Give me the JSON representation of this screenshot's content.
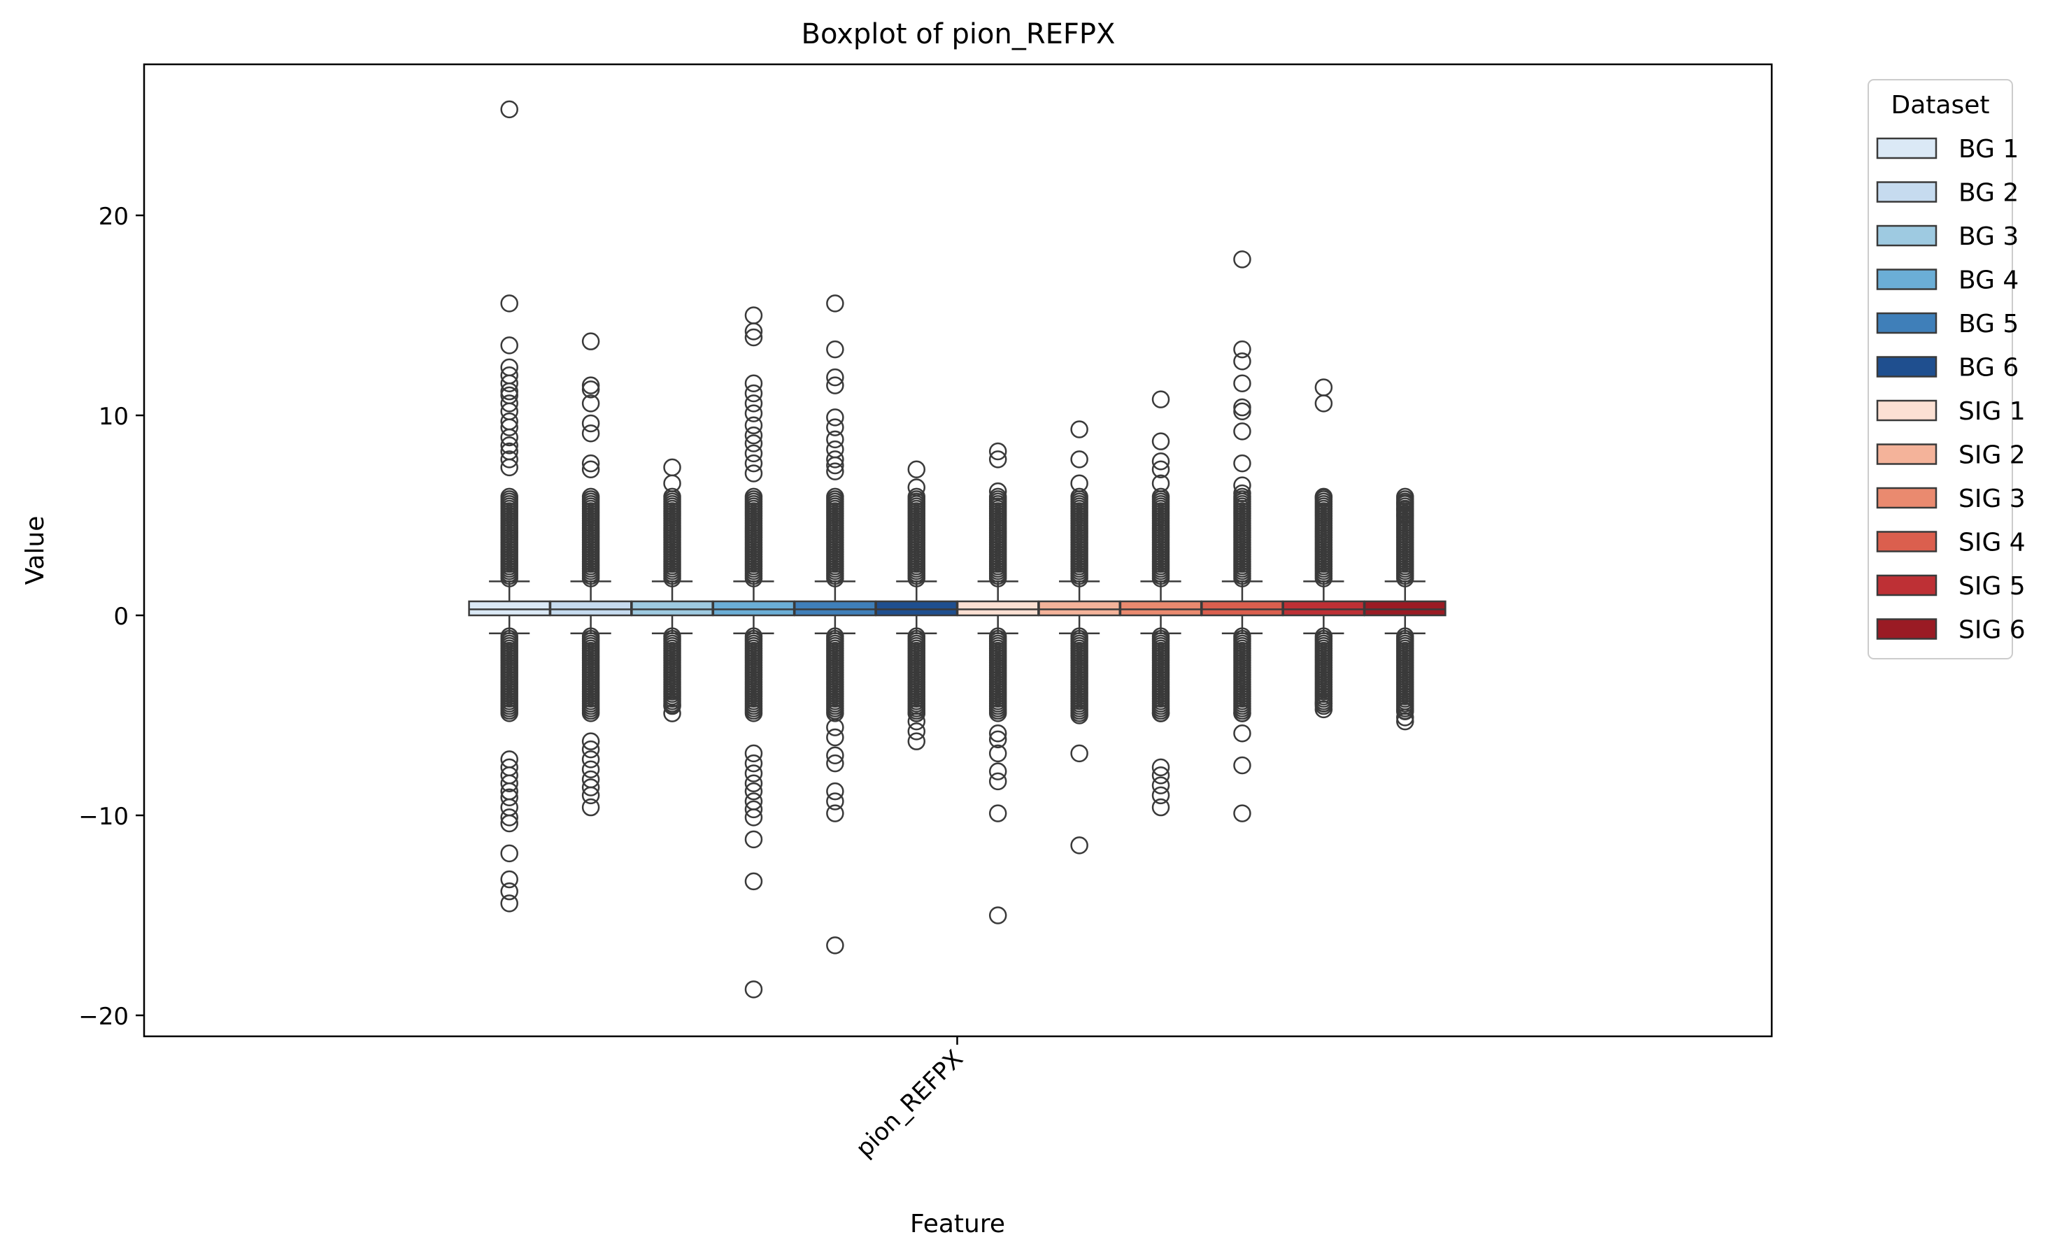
{
  "chart_data": {
    "type": "box",
    "title": "Boxplot of pion_REFPX",
    "xlabel": "Feature",
    "ylabel": "Value",
    "categories": [
      "pion_REFPX"
    ],
    "ylim": [
      -21,
      27.5
    ],
    "yticks": [
      -20,
      -10,
      0,
      10,
      20
    ],
    "grid": false,
    "legend": {
      "title": "Dataset",
      "placement": "outside-top-right"
    },
    "series": [
      {
        "name": "BG 1",
        "color": "#dbe9f6",
        "q1": 0.0,
        "median": 0.3,
        "q3": 0.7,
        "whisker_low": -0.9,
        "whisker_high": 1.7,
        "outliers_high": [
          25.3,
          15.6,
          13.5,
          12.4,
          12.0,
          11.6,
          11.2,
          11.0,
          10.6,
          10.2,
          9.7,
          9.4,
          8.9,
          8.5,
          8.2,
          7.8,
          7.4
        ],
        "outliers_low": [
          -7.2,
          -7.6,
          -8.0,
          -8.4,
          -8.8,
          -9.1,
          -9.6,
          -10.1,
          -10.4,
          -11.9,
          -13.2,
          -13.8,
          -14.4
        ]
      },
      {
        "name": "BG 2",
        "color": "#c6dbef",
        "q1": 0.0,
        "median": 0.3,
        "q3": 0.7,
        "whisker_low": -0.9,
        "whisker_high": 1.7,
        "outliers_high": [
          13.7,
          11.5,
          11.3,
          10.6,
          9.6,
          9.1,
          7.6,
          7.3
        ],
        "outliers_low": [
          -6.3,
          -6.7,
          -7.2,
          -7.7,
          -8.2,
          -8.6,
          -9.0,
          -9.6
        ]
      },
      {
        "name": "BG 3",
        "color": "#9ecae1",
        "q1": 0.0,
        "median": 0.3,
        "q3": 0.7,
        "whisker_low": -0.9,
        "whisker_high": 1.7,
        "outliers_high": [
          7.4,
          6.6
        ],
        "outliers_low": [
          -4.5,
          -4.9
        ]
      },
      {
        "name": "BG 4",
        "color": "#6baed6",
        "q1": 0.0,
        "median": 0.3,
        "q3": 0.7,
        "whisker_low": -0.9,
        "whisker_high": 1.7,
        "outliers_high": [
          15.0,
          14.2,
          13.9,
          11.6,
          11.1,
          10.6,
          10.1,
          9.5,
          9.0,
          8.6,
          8.1,
          7.6,
          7.1
        ],
        "outliers_low": [
          -6.9,
          -7.4,
          -7.9,
          -8.4,
          -8.8,
          -9.3,
          -9.7,
          -10.1,
          -11.2,
          -13.3,
          -18.7
        ]
      },
      {
        "name": "BG 5",
        "color": "#3f7fb9",
        "q1": 0.0,
        "median": 0.3,
        "q3": 0.7,
        "whisker_low": -0.9,
        "whisker_high": 1.7,
        "outliers_high": [
          15.6,
          13.3,
          11.9,
          11.5,
          9.9,
          9.4,
          8.8,
          8.3,
          7.8,
          7.5,
          7.2
        ],
        "outliers_low": [
          -5.6,
          -6.1,
          -7.0,
          -7.4,
          -8.8,
          -9.3,
          -9.9,
          -16.5
        ]
      },
      {
        "name": "BG 6",
        "color": "#1f4f8f",
        "q1": 0.0,
        "median": 0.3,
        "q3": 0.7,
        "whisker_low": -0.9,
        "whisker_high": 1.7,
        "outliers_high": [
          7.3,
          6.4
        ],
        "outliers_low": [
          -4.9,
          -5.3,
          -5.8,
          -6.3
        ]
      },
      {
        "name": "SIG 1",
        "color": "#fbe0d3",
        "q1": 0.0,
        "median": 0.3,
        "q3": 0.7,
        "whisker_low": -0.9,
        "whisker_high": 1.7,
        "outliers_high": [
          8.2,
          7.8,
          6.2
        ],
        "outliers_low": [
          -5.9,
          -6.2,
          -6.9,
          -7.8,
          -8.3,
          -9.9,
          -15.0
        ]
      },
      {
        "name": "SIG 2",
        "color": "#f4b39a",
        "q1": 0.0,
        "median": 0.3,
        "q3": 0.7,
        "whisker_low": -0.9,
        "whisker_high": 1.7,
        "outliers_high": [
          9.3,
          7.8,
          6.6
        ],
        "outliers_low": [
          -5.0,
          -6.9,
          -11.5
        ]
      },
      {
        "name": "SIG 3",
        "color": "#ea8a6f",
        "q1": 0.0,
        "median": 0.3,
        "q3": 0.7,
        "whisker_low": -0.9,
        "whisker_high": 1.7,
        "outliers_high": [
          10.8,
          8.7,
          7.7,
          7.3,
          6.6
        ],
        "outliers_low": [
          -4.9,
          -7.6,
          -8.0,
          -8.5,
          -9.0,
          -9.6
        ]
      },
      {
        "name": "SIG 4",
        "color": "#db5f4e",
        "q1": 0.0,
        "median": 0.3,
        "q3": 0.7,
        "whisker_low": -0.9,
        "whisker_high": 1.7,
        "outliers_high": [
          17.8,
          13.3,
          12.7,
          11.6,
          10.4,
          10.2,
          9.2,
          7.6,
          6.5,
          6.1
        ],
        "outliers_low": [
          -4.9,
          -5.9,
          -7.5,
          -9.9
        ]
      },
      {
        "name": "SIG 5",
        "color": "#be3035",
        "q1": 0.0,
        "median": 0.3,
        "q3": 0.7,
        "whisker_low": -0.9,
        "whisker_high": 1.7,
        "outliers_high": [
          11.4,
          10.6,
          5.9
        ],
        "outliers_low": [
          -4.4,
          -4.7
        ]
      },
      {
        "name": "SIG 6",
        "color": "#9a1b24",
        "q1": 0.0,
        "median": 0.3,
        "q3": 0.7,
        "whisker_low": -0.9,
        "whisker_high": 1.7,
        "outliers_high": [
          5.6,
          5.3,
          5.0
        ],
        "outliers_low": [
          -4.8,
          -5.1,
          -5.3
        ]
      }
    ]
  }
}
